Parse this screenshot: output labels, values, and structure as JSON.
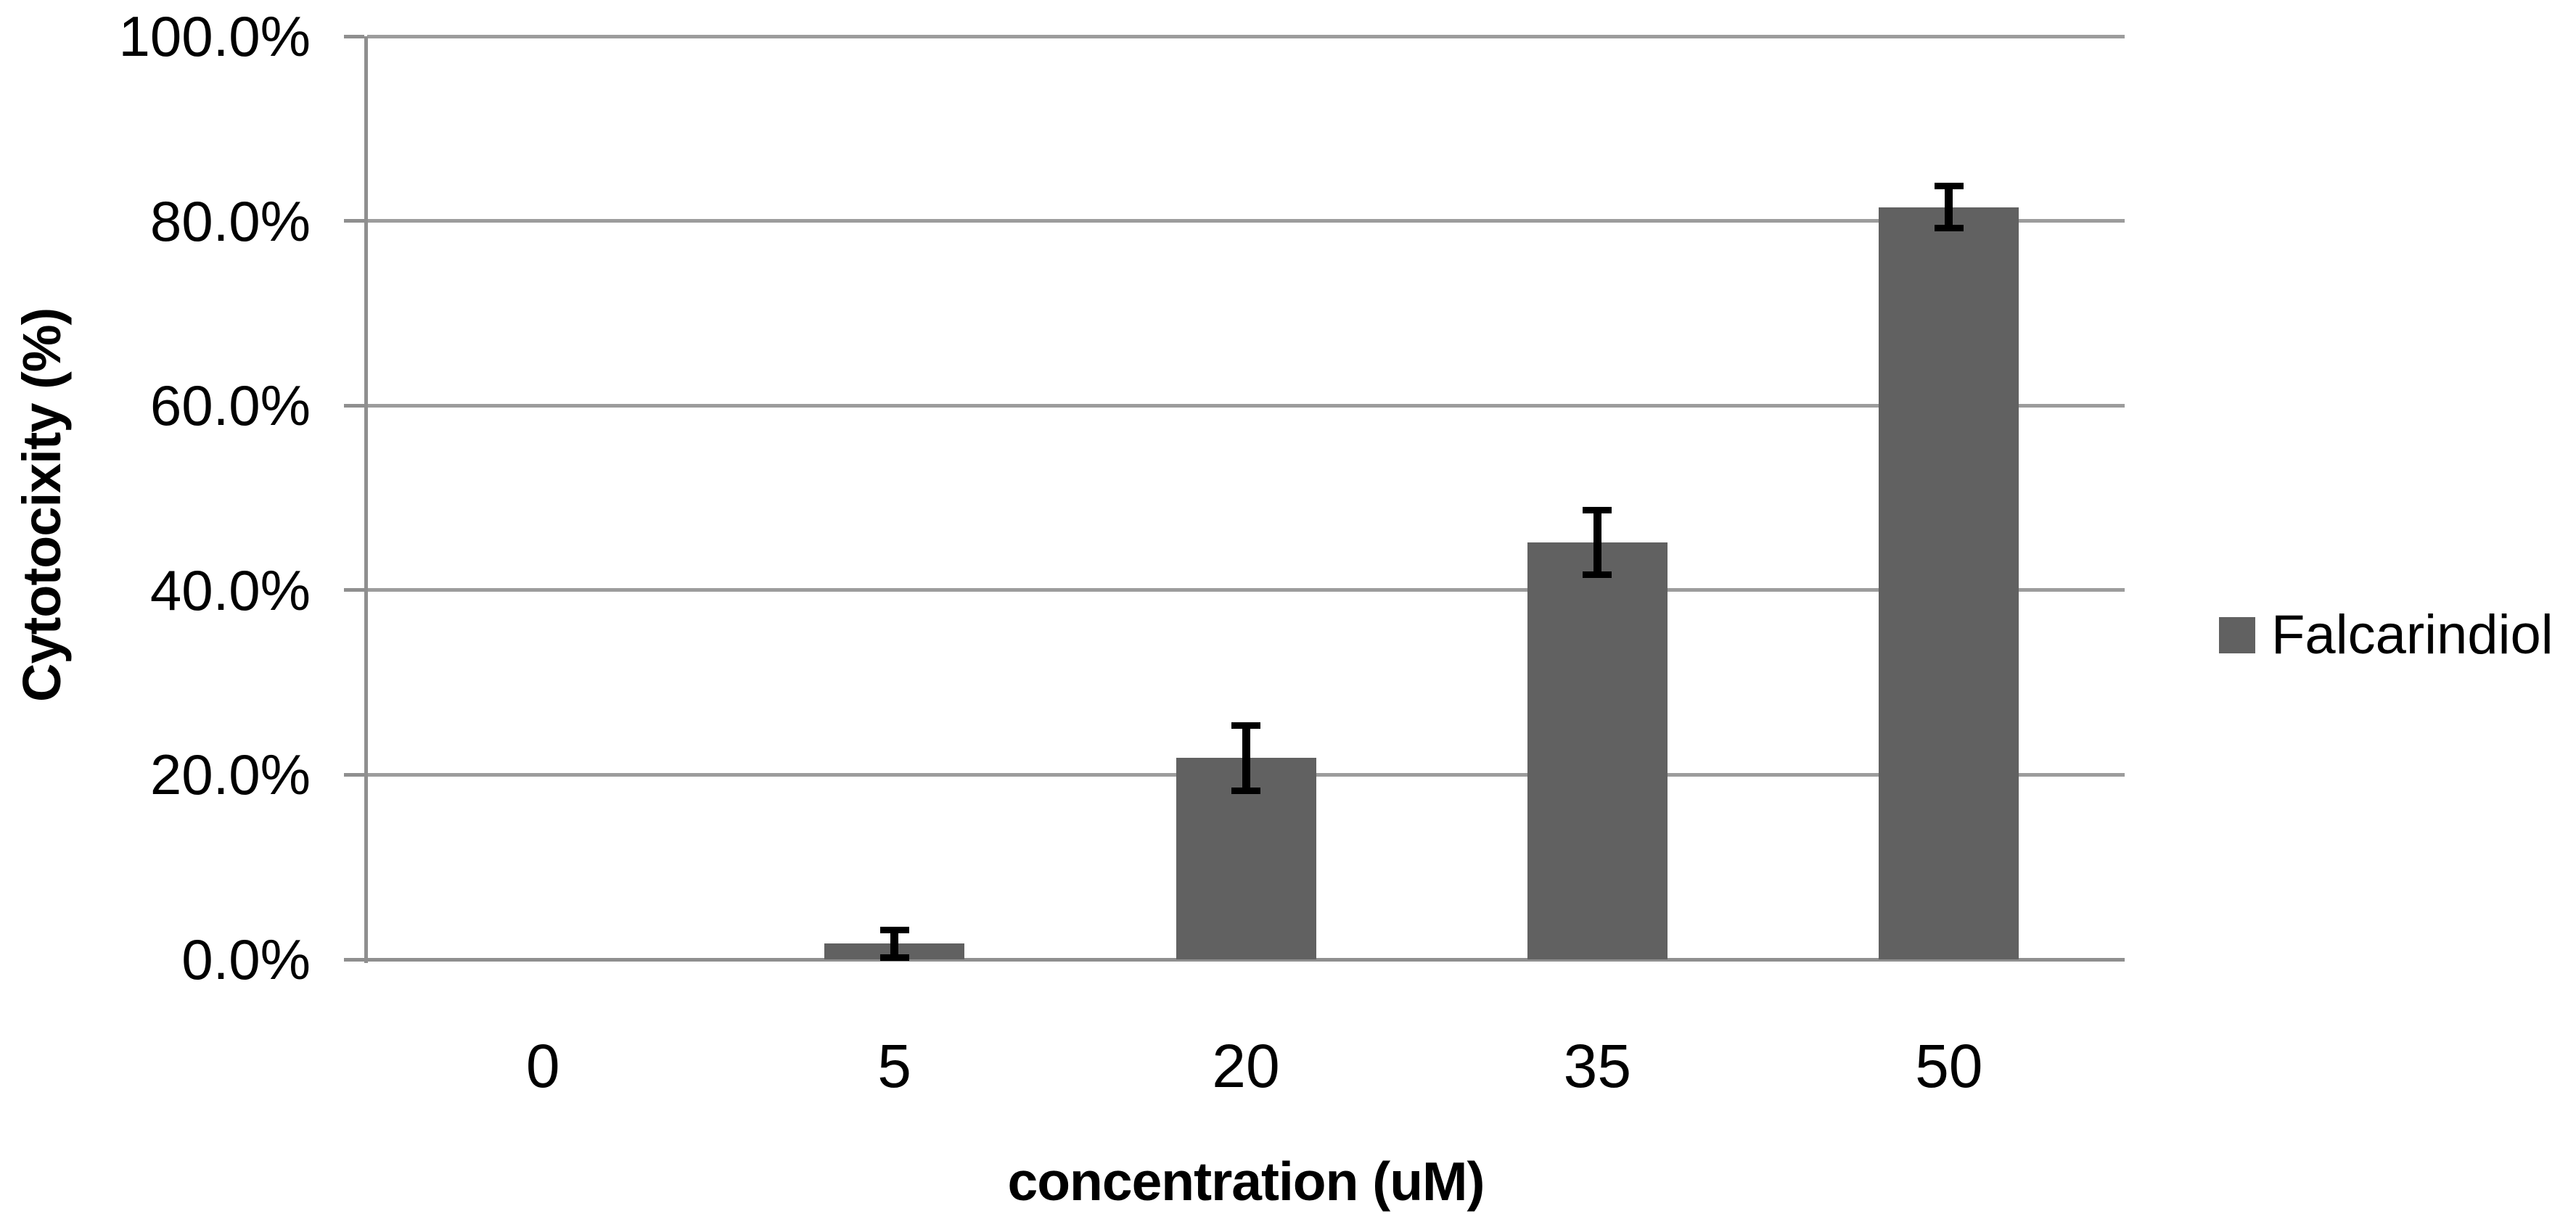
{
  "chart_data": {
    "type": "bar",
    "title": "",
    "categories": [
      "0",
      "5",
      "20",
      "35",
      "50"
    ],
    "series": [
      {
        "name": "Falcarindiol",
        "values": [
          0,
          1.7,
          21.8,
          45.2,
          81.5
        ],
        "errors_plus_minus": [
          0,
          1.5,
          3.5,
          3.5,
          2.3
        ]
      }
    ],
    "xlabel": "concentration (uM)",
    "ylabel": "Cytotocixity (%)",
    "ylim": [
      0,
      100
    ],
    "ytick_labels_bottom_to_top": [
      "0.0%",
      "20.0%",
      "40.0%",
      "60.0%",
      "80.0%",
      "100.0%"
    ],
    "grid": true,
    "legend_position": "right",
    "bar_color": "#616161",
    "legend_swatch_color": "#616161",
    "error_bar_color": "#000000",
    "axis_color": "#8f8f8f",
    "gridline_color": "#9c9c9c",
    "text_color": "#000000",
    "background_color": "#ffffff"
  }
}
